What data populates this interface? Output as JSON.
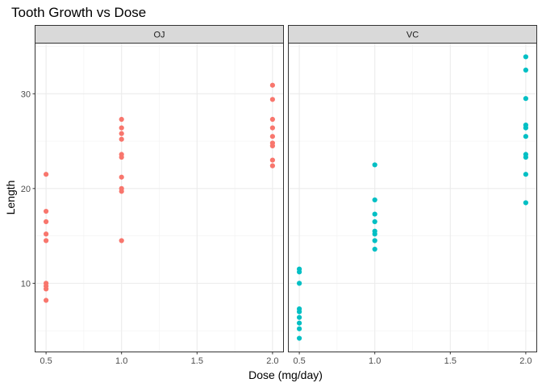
{
  "chart_data": {
    "type": "scatter",
    "title": "Tooth Growth vs Dose",
    "xlabel": "Dose (mg/day)",
    "ylabel": "Length",
    "xlim": [
      0.43,
      2.07
    ],
    "ylim": [
      2.8,
      35.3
    ],
    "x_ticks": [
      0.5,
      1.0,
      1.5,
      2.0
    ],
    "x_tick_labels": [
      "0.5",
      "1.0",
      "1.5",
      "2.0"
    ],
    "y_ticks": [
      10,
      20,
      30
    ],
    "y_tick_labels": [
      "10",
      "20",
      "30"
    ],
    "grid": true,
    "facets": [
      "OJ",
      "VC"
    ],
    "series": [
      {
        "facet": "OJ",
        "color": "#F8766D",
        "points": [
          [
            0.5,
            21.5
          ],
          [
            0.5,
            17.6
          ],
          [
            0.5,
            16.5
          ],
          [
            0.5,
            15.2
          ],
          [
            0.5,
            14.5
          ],
          [
            0.5,
            10.0
          ],
          [
            0.5,
            9.7
          ],
          [
            0.5,
            9.4
          ],
          [
            0.5,
            8.2
          ],
          [
            1.0,
            27.3
          ],
          [
            1.0,
            26.4
          ],
          [
            1.0,
            25.8
          ],
          [
            1.0,
            25.2
          ],
          [
            1.0,
            23.6
          ],
          [
            1.0,
            23.3
          ],
          [
            1.0,
            21.2
          ],
          [
            1.0,
            20.0
          ],
          [
            1.0,
            19.7
          ],
          [
            1.0,
            14.5
          ],
          [
            2.0,
            30.9
          ],
          [
            2.0,
            29.4
          ],
          [
            2.0,
            27.3
          ],
          [
            2.0,
            26.4
          ],
          [
            2.0,
            25.5
          ],
          [
            2.0,
            24.8
          ],
          [
            2.0,
            24.5
          ],
          [
            2.0,
            23.0
          ],
          [
            2.0,
            22.4
          ]
        ]
      },
      {
        "facet": "VC",
        "color": "#00BFC4",
        "points": [
          [
            0.5,
            11.5
          ],
          [
            0.5,
            11.2
          ],
          [
            0.5,
            10.0
          ],
          [
            0.5,
            7.3
          ],
          [
            0.5,
            7.0
          ],
          [
            0.5,
            6.4
          ],
          [
            0.5,
            5.8
          ],
          [
            0.5,
            5.2
          ],
          [
            0.5,
            4.2
          ],
          [
            1.0,
            22.5
          ],
          [
            1.0,
            18.8
          ],
          [
            1.0,
            17.3
          ],
          [
            1.0,
            16.5
          ],
          [
            1.0,
            15.5
          ],
          [
            1.0,
            15.2
          ],
          [
            1.0,
            14.5
          ],
          [
            1.0,
            13.6
          ],
          [
            2.0,
            33.9
          ],
          [
            2.0,
            32.5
          ],
          [
            2.0,
            29.5
          ],
          [
            2.0,
            26.7
          ],
          [
            2.0,
            26.4
          ],
          [
            2.0,
            25.5
          ],
          [
            2.0,
            23.6
          ],
          [
            2.0,
            23.3
          ],
          [
            2.0,
            21.5
          ],
          [
            2.0,
            18.5
          ]
        ]
      }
    ]
  }
}
